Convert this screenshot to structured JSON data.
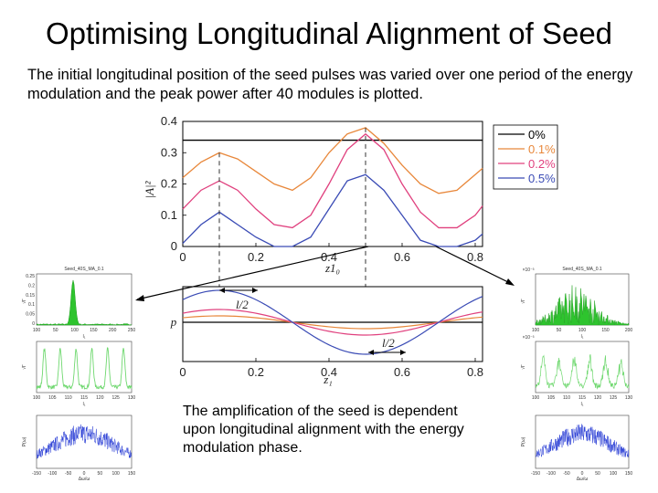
{
  "title": "Optimising Longitudinal Alignment of Seed",
  "intro_text": "The initial longitudinal position of the seed pulses was varied over one period of the energy modulation and the peak power after 40 modules is plotted.",
  "caption": "The amplification of the seed is dependent upon longitudinal alignment with the energy modulation phase.",
  "colors": {
    "s0": "#000000",
    "s01": "#e8873a",
    "s02": "#e0407e",
    "s05": "#3a4bb5",
    "green": "#2ec42e",
    "blue_noise": "#2b3fd6"
  },
  "chart_data": [
    {
      "type": "line",
      "name": "peak-power-vs-position",
      "x": [
        0,
        0.05,
        0.1,
        0.15,
        0.2,
        0.25,
        0.3,
        0.35,
        0.4,
        0.45,
        0.5,
        0.55,
        0.6,
        0.65,
        0.7,
        0.75,
        0.8,
        0.82
      ],
      "xlim": [
        0,
        0.82
      ],
      "ylim": [
        0,
        0.4
      ],
      "xticks": [
        "0",
        "0.2",
        "0.4",
        "0.6",
        "0.8"
      ],
      "yticks": [
        "0",
        "0.1",
        "0.2",
        "0.3",
        "0.4"
      ],
      "xlabel": "z1₀",
      "ylabel": "|A|²",
      "series": [
        {
          "name": "0%",
          "values": [
            0.34,
            0.34,
            0.34,
            0.34,
            0.34,
            0.34,
            0.34,
            0.34,
            0.34,
            0.34,
            0.34,
            0.34,
            0.34,
            0.34,
            0.34,
            0.34,
            0.34,
            0.34
          ]
        },
        {
          "name": "0.1%",
          "values": [
            0.22,
            0.27,
            0.3,
            0.28,
            0.24,
            0.2,
            0.18,
            0.22,
            0.3,
            0.36,
            0.38,
            0.33,
            0.26,
            0.2,
            0.17,
            0.18,
            0.23,
            0.25
          ]
        },
        {
          "name": "0.2%",
          "values": [
            0.12,
            0.18,
            0.21,
            0.18,
            0.12,
            0.07,
            0.06,
            0.1,
            0.2,
            0.31,
            0.36,
            0.31,
            0.2,
            0.11,
            0.06,
            0.06,
            0.1,
            0.13
          ]
        },
        {
          "name": "0.5%",
          "values": [
            0.01,
            0.07,
            0.11,
            0.07,
            0.03,
            0.0,
            0.0,
            0.03,
            0.12,
            0.21,
            0.23,
            0.18,
            0.1,
            0.02,
            0.0,
            0.0,
            0.02,
            0.04
          ]
        }
      ],
      "legend": [
        "0%",
        "0.1%",
        "0.2%",
        "0.5%"
      ],
      "annotations": [
        {
          "x": 0.1
        },
        {
          "x": 0.5
        }
      ]
    },
    {
      "type": "line",
      "name": "energy-modulation",
      "xlim": [
        0,
        0.82
      ],
      "xticks": [
        "0",
        "0.2",
        "0.4",
        "0.6",
        "0.8"
      ],
      "xlabel": "z₁",
      "ylabel": "p",
      "series": [
        {
          "name": "0%",
          "amplitude": 0
        },
        {
          "name": "0.1%",
          "amplitude": 0.1
        },
        {
          "name": "0.2%",
          "amplitude": 0.2
        },
        {
          "name": "0.5%",
          "amplitude": 0.5
        }
      ],
      "annotations": [
        "l/2",
        "l/2"
      ]
    }
  ],
  "insets": {
    "left": {
      "top_title": "Seed_40S_MA_0.1",
      "top_ylabel": "√Γ",
      "top_xlabel": "l₁",
      "top_xticks": [
        "100",
        "50",
        "100",
        "150",
        "200",
        "250"
      ],
      "top_yticks": [
        "0.25",
        "0.2",
        "0.15",
        "0.1",
        "0.05",
        "0"
      ],
      "mid_ylabel": "√Γ",
      "mid_xlabel": "l₁",
      "mid_xticks": [
        "100",
        "105",
        "110",
        "115",
        "120",
        "125",
        "130"
      ],
      "bottom_ylabel": "P(ω)",
      "bottom_xlabel": "Δω/ω",
      "bottom_xticks": [
        "-150",
        "-100",
        "-50",
        "0",
        "50",
        "100",
        "150"
      ]
    },
    "right": {
      "top_title": "Seed_40S_MA_0.1",
      "top_scale": "×10⁻³",
      "top_ylabel": "√Γ",
      "top_xlabel": "l₁",
      "top_xticks": [
        "100",
        "50",
        "100",
        "150",
        "200"
      ],
      "mid_scale": "×10⁻³",
      "mid_ylabel": "√Γ",
      "mid_xlabel": "l₁",
      "mid_xticks": [
        "100",
        "105",
        "110",
        "115",
        "120",
        "125",
        "130"
      ],
      "bottom_ylabel": "P(ω)",
      "bottom_xlabel": "Δω/ω",
      "bottom_xticks": [
        "-150",
        "-100",
        "-50",
        "0",
        "50",
        "100",
        "150"
      ]
    }
  }
}
